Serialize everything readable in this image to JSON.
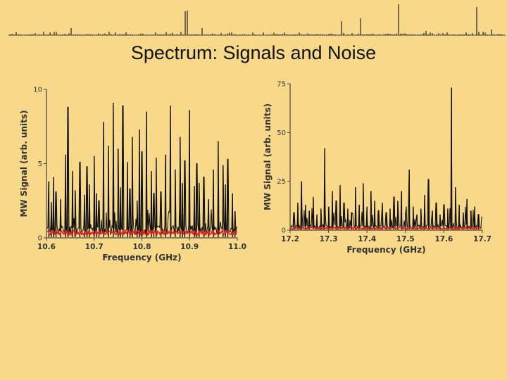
{
  "slide": {
    "title": "Spectrum: Signals and Noise"
  },
  "colors": {
    "background": "#f8d98a",
    "signal": "#111111",
    "noise": "#e02020",
    "axis": "#444444"
  },
  "chart_data": [
    {
      "type": "line",
      "xlabel": "Frequency (GHz)",
      "ylabel": "MW Signal (arb. units)",
      "xlim": [
        10.6,
        11.0
      ],
      "ylim": [
        0,
        10
      ],
      "x_ticks": [
        "10.6",
        "10.7",
        "10.8",
        "10.9",
        "11.0"
      ],
      "y_ticks": [
        "0",
        "5",
        "10"
      ],
      "series": [
        {
          "color": "#111111",
          "peaks": [
            [
              10.605,
              3.8
            ],
            [
              10.61,
              2.4
            ],
            [
              10.615,
              4.1
            ],
            [
              10.62,
              3.1
            ],
            [
              10.63,
              2.6
            ],
            [
              10.64,
              5.6
            ],
            [
              10.645,
              8.8
            ],
            [
              10.655,
              4.5
            ],
            [
              10.66,
              3.2
            ],
            [
              10.67,
              5.1
            ],
            [
              10.68,
              2.9
            ],
            [
              10.685,
              4.8
            ],
            [
              10.69,
              3.6
            ],
            [
              10.7,
              5.5
            ],
            [
              10.705,
              3.0
            ],
            [
              10.71,
              2.5
            ],
            [
              10.72,
              7.8
            ],
            [
              10.73,
              6.2
            ],
            [
              10.74,
              9.1
            ],
            [
              10.75,
              6.0
            ],
            [
              10.755,
              3.4
            ],
            [
              10.76,
              8.9
            ],
            [
              10.77,
              5.1
            ],
            [
              10.775,
              3.3
            ],
            [
              10.78,
              6.8
            ],
            [
              10.79,
              2.5
            ],
            [
              10.795,
              7.3
            ],
            [
              10.8,
              5.8
            ],
            [
              10.81,
              8.5
            ],
            [
              10.82,
              4.5
            ],
            [
              10.825,
              3.0
            ],
            [
              10.83,
              5.4
            ],
            [
              10.84,
              3.1
            ],
            [
              10.85,
              5.6
            ],
            [
              10.86,
              8.9
            ],
            [
              10.87,
              4.6
            ],
            [
              10.88,
              6.8
            ],
            [
              10.885,
              3.7
            ],
            [
              10.89,
              5.2
            ],
            [
              10.9,
              8.6
            ],
            [
              10.91,
              3.5
            ],
            [
              10.915,
              5.0
            ],
            [
              10.92,
              3.7
            ],
            [
              10.93,
              4.1
            ],
            [
              10.94,
              2.6
            ],
            [
              10.95,
              4.6
            ],
            [
              10.96,
              6.5
            ],
            [
              10.97,
              4.9
            ],
            [
              10.975,
              3.6
            ],
            [
              10.98,
              5.3
            ],
            [
              10.99,
              3.0
            ],
            [
              10.995,
              1.8
            ]
          ]
        },
        {
          "color": "#e02020",
          "noise_band": [
            0.2,
            0.5
          ]
        }
      ]
    },
    {
      "type": "line",
      "xlabel": "Frequency (GHz)",
      "ylabel": "MW Signal (arb. units)",
      "xlim": [
        17.2,
        17.7
      ],
      "ylim": [
        0,
        75
      ],
      "x_ticks": [
        "17.2",
        "17.3",
        "17.4",
        "17.5",
        "17.6",
        "17.7"
      ],
      "y_ticks": [
        "0",
        "25",
        "50",
        "75"
      ],
      "series": [
        {
          "color": "#111111",
          "peaks": [
            [
              17.21,
              9
            ],
            [
              17.22,
              14
            ],
            [
              17.23,
              25
            ],
            [
              17.24,
              13
            ],
            [
              17.25,
              10
            ],
            [
              17.26,
              17
            ],
            [
              17.27,
              8
            ],
            [
              17.28,
              11
            ],
            [
              17.29,
              42
            ],
            [
              17.3,
              12
            ],
            [
              17.31,
              20
            ],
            [
              17.32,
              15
            ],
            [
              17.33,
              23
            ],
            [
              17.34,
              14
            ],
            [
              17.35,
              11
            ],
            [
              17.36,
              9
            ],
            [
              17.37,
              22
            ],
            [
              17.38,
              13
            ],
            [
              17.39,
              24
            ],
            [
              17.4,
              12
            ],
            [
              17.41,
              20
            ],
            [
              17.42,
              15
            ],
            [
              17.43,
              10
            ],
            [
              17.44,
              14
            ],
            [
              17.45,
              9
            ],
            [
              17.46,
              11
            ],
            [
              17.47,
              17
            ],
            [
              17.48,
              15
            ],
            [
              17.49,
              20
            ],
            [
              17.5,
              9
            ],
            [
              17.51,
              31
            ],
            [
              17.52,
              12
            ],
            [
              17.53,
              8
            ],
            [
              17.54,
              11
            ],
            [
              17.55,
              18
            ],
            [
              17.56,
              26
            ],
            [
              17.57,
              10
            ],
            [
              17.58,
              14
            ],
            [
              17.59,
              8
            ],
            [
              17.6,
              13
            ],
            [
              17.61,
              11
            ],
            [
              17.62,
              73
            ],
            [
              17.63,
              22
            ],
            [
              17.64,
              13
            ],
            [
              17.65,
              9
            ],
            [
              17.66,
              16
            ],
            [
              17.67,
              10
            ],
            [
              17.68,
              12
            ],
            [
              17.69,
              8
            ]
          ]
        },
        {
          "color": "#e02020",
          "noise_band": [
            0.5,
            1.5
          ]
        }
      ]
    }
  ]
}
